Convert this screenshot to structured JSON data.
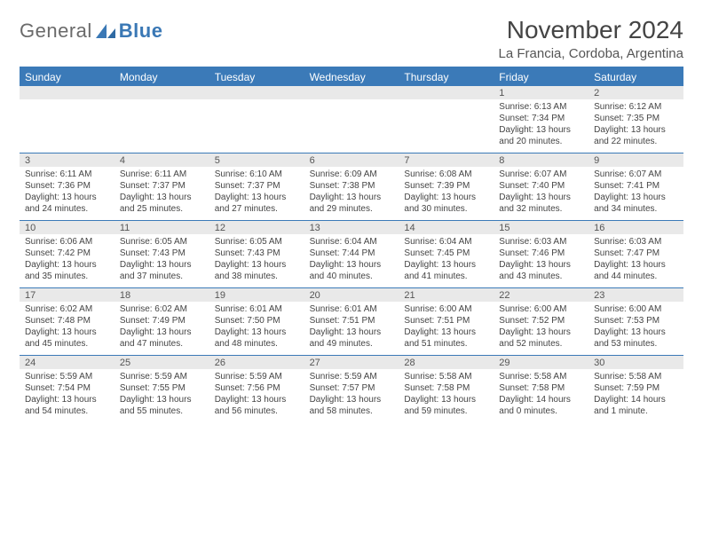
{
  "logo": {
    "word1": "General",
    "word2": "Blue"
  },
  "title": "November 2024",
  "location": "La Francia, Cordoba, Argentina",
  "colors": {
    "header_bg": "#3b7ab8",
    "header_text": "#ffffff",
    "date_bg": "#e9e9e9",
    "rule": "#3b7ab8",
    "body_text": "#444444",
    "title_text": "#444444",
    "logo_gray": "#6a6a6a",
    "logo_blue": "#3a78b5"
  },
  "weekdays": [
    "Sunday",
    "Monday",
    "Tuesday",
    "Wednesday",
    "Thursday",
    "Friday",
    "Saturday"
  ],
  "weeks": [
    [
      {
        "n": "",
        "sr": "",
        "ss": "",
        "dl": ""
      },
      {
        "n": "",
        "sr": "",
        "ss": "",
        "dl": ""
      },
      {
        "n": "",
        "sr": "",
        "ss": "",
        "dl": ""
      },
      {
        "n": "",
        "sr": "",
        "ss": "",
        "dl": ""
      },
      {
        "n": "",
        "sr": "",
        "ss": "",
        "dl": ""
      },
      {
        "n": "1",
        "sr": "Sunrise: 6:13 AM",
        "ss": "Sunset: 7:34 PM",
        "dl": "Daylight: 13 hours and 20 minutes."
      },
      {
        "n": "2",
        "sr": "Sunrise: 6:12 AM",
        "ss": "Sunset: 7:35 PM",
        "dl": "Daylight: 13 hours and 22 minutes."
      }
    ],
    [
      {
        "n": "3",
        "sr": "Sunrise: 6:11 AM",
        "ss": "Sunset: 7:36 PM",
        "dl": "Daylight: 13 hours and 24 minutes."
      },
      {
        "n": "4",
        "sr": "Sunrise: 6:11 AM",
        "ss": "Sunset: 7:37 PM",
        "dl": "Daylight: 13 hours and 25 minutes."
      },
      {
        "n": "5",
        "sr": "Sunrise: 6:10 AM",
        "ss": "Sunset: 7:37 PM",
        "dl": "Daylight: 13 hours and 27 minutes."
      },
      {
        "n": "6",
        "sr": "Sunrise: 6:09 AM",
        "ss": "Sunset: 7:38 PM",
        "dl": "Daylight: 13 hours and 29 minutes."
      },
      {
        "n": "7",
        "sr": "Sunrise: 6:08 AM",
        "ss": "Sunset: 7:39 PM",
        "dl": "Daylight: 13 hours and 30 minutes."
      },
      {
        "n": "8",
        "sr": "Sunrise: 6:07 AM",
        "ss": "Sunset: 7:40 PM",
        "dl": "Daylight: 13 hours and 32 minutes."
      },
      {
        "n": "9",
        "sr": "Sunrise: 6:07 AM",
        "ss": "Sunset: 7:41 PM",
        "dl": "Daylight: 13 hours and 34 minutes."
      }
    ],
    [
      {
        "n": "10",
        "sr": "Sunrise: 6:06 AM",
        "ss": "Sunset: 7:42 PM",
        "dl": "Daylight: 13 hours and 35 minutes."
      },
      {
        "n": "11",
        "sr": "Sunrise: 6:05 AM",
        "ss": "Sunset: 7:43 PM",
        "dl": "Daylight: 13 hours and 37 minutes."
      },
      {
        "n": "12",
        "sr": "Sunrise: 6:05 AM",
        "ss": "Sunset: 7:43 PM",
        "dl": "Daylight: 13 hours and 38 minutes."
      },
      {
        "n": "13",
        "sr": "Sunrise: 6:04 AM",
        "ss": "Sunset: 7:44 PM",
        "dl": "Daylight: 13 hours and 40 minutes."
      },
      {
        "n": "14",
        "sr": "Sunrise: 6:04 AM",
        "ss": "Sunset: 7:45 PM",
        "dl": "Daylight: 13 hours and 41 minutes."
      },
      {
        "n": "15",
        "sr": "Sunrise: 6:03 AM",
        "ss": "Sunset: 7:46 PM",
        "dl": "Daylight: 13 hours and 43 minutes."
      },
      {
        "n": "16",
        "sr": "Sunrise: 6:03 AM",
        "ss": "Sunset: 7:47 PM",
        "dl": "Daylight: 13 hours and 44 minutes."
      }
    ],
    [
      {
        "n": "17",
        "sr": "Sunrise: 6:02 AM",
        "ss": "Sunset: 7:48 PM",
        "dl": "Daylight: 13 hours and 45 minutes."
      },
      {
        "n": "18",
        "sr": "Sunrise: 6:02 AM",
        "ss": "Sunset: 7:49 PM",
        "dl": "Daylight: 13 hours and 47 minutes."
      },
      {
        "n": "19",
        "sr": "Sunrise: 6:01 AM",
        "ss": "Sunset: 7:50 PM",
        "dl": "Daylight: 13 hours and 48 minutes."
      },
      {
        "n": "20",
        "sr": "Sunrise: 6:01 AM",
        "ss": "Sunset: 7:51 PM",
        "dl": "Daylight: 13 hours and 49 minutes."
      },
      {
        "n": "21",
        "sr": "Sunrise: 6:00 AM",
        "ss": "Sunset: 7:51 PM",
        "dl": "Daylight: 13 hours and 51 minutes."
      },
      {
        "n": "22",
        "sr": "Sunrise: 6:00 AM",
        "ss": "Sunset: 7:52 PM",
        "dl": "Daylight: 13 hours and 52 minutes."
      },
      {
        "n": "23",
        "sr": "Sunrise: 6:00 AM",
        "ss": "Sunset: 7:53 PM",
        "dl": "Daylight: 13 hours and 53 minutes."
      }
    ],
    [
      {
        "n": "24",
        "sr": "Sunrise: 5:59 AM",
        "ss": "Sunset: 7:54 PM",
        "dl": "Daylight: 13 hours and 54 minutes."
      },
      {
        "n": "25",
        "sr": "Sunrise: 5:59 AM",
        "ss": "Sunset: 7:55 PM",
        "dl": "Daylight: 13 hours and 55 minutes."
      },
      {
        "n": "26",
        "sr": "Sunrise: 5:59 AM",
        "ss": "Sunset: 7:56 PM",
        "dl": "Daylight: 13 hours and 56 minutes."
      },
      {
        "n": "27",
        "sr": "Sunrise: 5:59 AM",
        "ss": "Sunset: 7:57 PM",
        "dl": "Daylight: 13 hours and 58 minutes."
      },
      {
        "n": "28",
        "sr": "Sunrise: 5:58 AM",
        "ss": "Sunset: 7:58 PM",
        "dl": "Daylight: 13 hours and 59 minutes."
      },
      {
        "n": "29",
        "sr": "Sunrise: 5:58 AM",
        "ss": "Sunset: 7:58 PM",
        "dl": "Daylight: 14 hours and 0 minutes."
      },
      {
        "n": "30",
        "sr": "Sunrise: 5:58 AM",
        "ss": "Sunset: 7:59 PM",
        "dl": "Daylight: 14 hours and 1 minute."
      }
    ]
  ]
}
